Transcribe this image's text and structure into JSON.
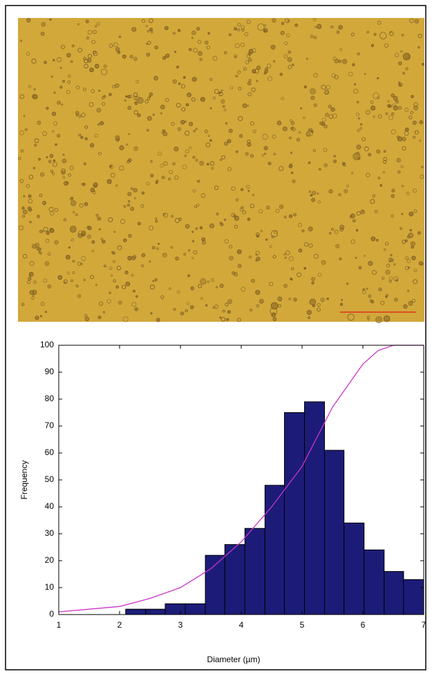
{
  "chart_data": {
    "type": "histogram",
    "xlabel": "Diameter (µm)",
    "ylabel": "Frequency",
    "bins": [
      2.1,
      2.43,
      2.75,
      3.08,
      3.41,
      3.73,
      4.06,
      4.39,
      4.71,
      5.04,
      5.37,
      5.69,
      6.02,
      6.35,
      6.67,
      7.0
    ],
    "values": [
      2,
      2,
      4,
      4,
      22,
      26,
      32,
      48,
      75,
      79,
      61,
      34,
      24,
      16,
      13
    ],
    "color": "#1c1c78",
    "curve": {
      "x": [
        1,
        1.5,
        2,
        2.5,
        3,
        3.5,
        4,
        4.5,
        5,
        5.5,
        6,
        6.25,
        6.5,
        6.75,
        7
      ],
      "values": [
        1,
        2,
        3,
        6,
        10,
        17,
        27,
        40,
        55,
        77,
        93,
        98,
        100,
        100,
        100
      ],
      "color": "#cc33cc"
    },
    "xlim": [
      1,
      7
    ],
    "xticks": [
      1,
      2,
      3,
      4,
      5,
      6,
      7
    ],
    "ylim": [
      0,
      100
    ],
    "yticks": [
      0,
      10,
      20,
      30,
      40,
      50,
      60,
      70,
      80,
      90,
      100
    ]
  }
}
